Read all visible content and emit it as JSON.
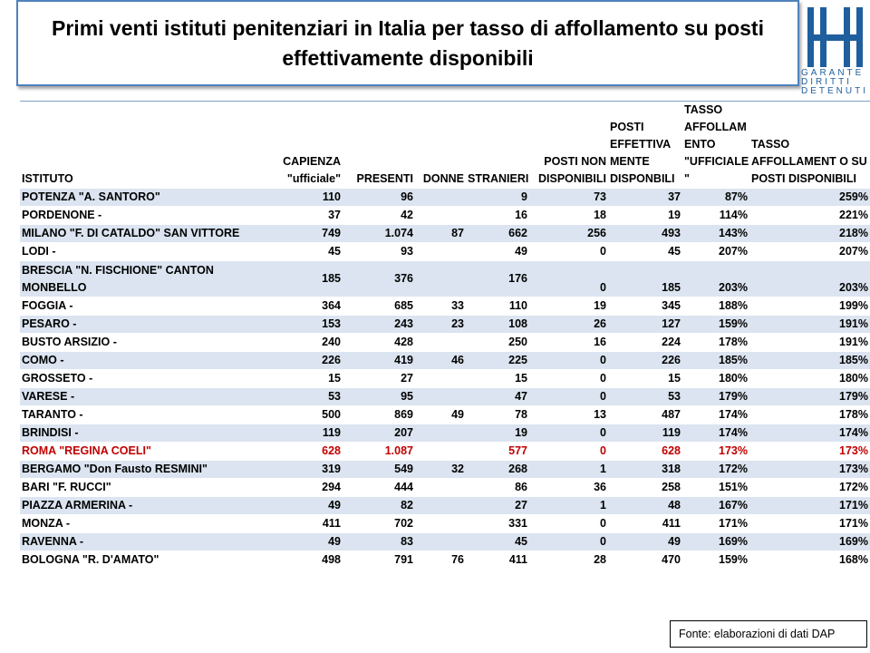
{
  "title": "Primi venti istituti penitenziari in Italia per tasso di affollamento su posti effettivamente disponibili",
  "logo": {
    "lines": [
      "GARANTE",
      "DIRITTI",
      "DETENUTI"
    ]
  },
  "columns": {
    "istituto": "ISTITUTO",
    "capienza": "CAPIENZA \"ufficiale\"",
    "presenti": "PRESENTI",
    "donne": "DONNE",
    "stranieri": "STRANIERI",
    "posti_non_disp": "POSTI NON DISPONIBILI",
    "posti_eff_disp": "POSTI EFFETTIVA MENTE DISPONBILI",
    "tasso_ufficiale": "TASSO AFFOLLAM ENTO \"UFFICIALE \"",
    "tasso_disp": "TASSO AFFOLLAMENT O SU POSTI DISPONIBILI"
  },
  "rows": [
    {
      "istituto": "POTENZA \"A. SANTORO\"",
      "capienza": "110",
      "presenti": "96",
      "donne": "",
      "stranieri": "9",
      "posti_non_disp": "73",
      "posti_eff_disp": "37",
      "tasso_ufficiale": "87%",
      "tasso_disp": "259%"
    },
    {
      "istituto": "PORDENONE -",
      "capienza": "37",
      "presenti": "42",
      "donne": "",
      "stranieri": "16",
      "posti_non_disp": "18",
      "posti_eff_disp": "19",
      "tasso_ufficiale": "114%",
      "tasso_disp": "221%"
    },
    {
      "istituto": "MILANO \"F. DI CATALDO\" SAN VITTORE",
      "capienza": "749",
      "presenti": "1.074",
      "donne": "87",
      "stranieri": "662",
      "posti_non_disp": "256",
      "posti_eff_disp": "493",
      "tasso_ufficiale": "143%",
      "tasso_disp": "218%"
    },
    {
      "istituto": "LODI -",
      "capienza": "45",
      "presenti": "93",
      "donne": "",
      "stranieri": "49",
      "posti_non_disp": "0",
      "posti_eff_disp": "45",
      "tasso_ufficiale": "207%",
      "tasso_disp": "207%"
    },
    {
      "istituto": "BRESCIA \"N. FISCHIONE\" CANTON MONBELLO",
      "capienza": "185",
      "presenti": "376",
      "donne": "",
      "stranieri": "176",
      "posti_non_disp": "0",
      "posti_eff_disp": "185",
      "tasso_ufficiale": "203%",
      "tasso_disp": "203%"
    },
    {
      "istituto": "FOGGIA -",
      "capienza": "364",
      "presenti": "685",
      "donne": "33",
      "stranieri": "110",
      "posti_non_disp": "19",
      "posti_eff_disp": "345",
      "tasso_ufficiale": "188%",
      "tasso_disp": "199%"
    },
    {
      "istituto": "PESARO -",
      "capienza": "153",
      "presenti": "243",
      "donne": "23",
      "stranieri": "108",
      "posti_non_disp": "26",
      "posti_eff_disp": "127",
      "tasso_ufficiale": "159%",
      "tasso_disp": "191%"
    },
    {
      "istituto": "BUSTO ARSIZIO -",
      "capienza": "240",
      "presenti": "428",
      "donne": "",
      "stranieri": "250",
      "posti_non_disp": "16",
      "posti_eff_disp": "224",
      "tasso_ufficiale": "178%",
      "tasso_disp": "191%"
    },
    {
      "istituto": "COMO -",
      "capienza": "226",
      "presenti": "419",
      "donne": "46",
      "stranieri": "225",
      "posti_non_disp": "0",
      "posti_eff_disp": "226",
      "tasso_ufficiale": "185%",
      "tasso_disp": "185%"
    },
    {
      "istituto": "GROSSETO -",
      "capienza": "15",
      "presenti": "27",
      "donne": "",
      "stranieri": "15",
      "posti_non_disp": "0",
      "posti_eff_disp": "15",
      "tasso_ufficiale": "180%",
      "tasso_disp": "180%"
    },
    {
      "istituto": "VARESE -",
      "capienza": "53",
      "presenti": "95",
      "donne": "",
      "stranieri": "47",
      "posti_non_disp": "0",
      "posti_eff_disp": "53",
      "tasso_ufficiale": "179%",
      "tasso_disp": "179%"
    },
    {
      "istituto": "TARANTO -",
      "capienza": "500",
      "presenti": "869",
      "donne": "49",
      "stranieri": "78",
      "posti_non_disp": "13",
      "posti_eff_disp": "487",
      "tasso_ufficiale": "174%",
      "tasso_disp": "178%"
    },
    {
      "istituto": "BRINDISI -",
      "capienza": "119",
      "presenti": "207",
      "donne": "",
      "stranieri": "19",
      "posti_non_disp": "0",
      "posti_eff_disp": "119",
      "tasso_ufficiale": "174%",
      "tasso_disp": "174%"
    },
    {
      "istituto": "ROMA \"REGINA COELI\"",
      "capienza": "628",
      "presenti": "1.087",
      "donne": "",
      "stranieri": "577",
      "posti_non_disp": "0",
      "posti_eff_disp": "628",
      "tasso_ufficiale": "173%",
      "tasso_disp": "173%"
    },
    {
      "istituto": "BERGAMO \"Don Fausto RESMINI\"",
      "capienza": "319",
      "presenti": "549",
      "donne": "32",
      "stranieri": "268",
      "posti_non_disp": "1",
      "posti_eff_disp": "318",
      "tasso_ufficiale": "172%",
      "tasso_disp": "173%"
    },
    {
      "istituto": "BARI \"F. RUCCI\"",
      "capienza": "294",
      "presenti": "444",
      "donne": "",
      "stranieri": "86",
      "posti_non_disp": "36",
      "posti_eff_disp": "258",
      "tasso_ufficiale": "151%",
      "tasso_disp": "172%"
    },
    {
      "istituto": "PIAZZA ARMERINA -",
      "capienza": "49",
      "presenti": "82",
      "donne": "",
      "stranieri": "27",
      "posti_non_disp": "1",
      "posti_eff_disp": "48",
      "tasso_ufficiale": "167%",
      "tasso_disp": "171%"
    },
    {
      "istituto": "MONZA -",
      "capienza": "411",
      "presenti": "702",
      "donne": "",
      "stranieri": "331",
      "posti_non_disp": "0",
      "posti_eff_disp": "411",
      "tasso_ufficiale": "171%",
      "tasso_disp": "171%"
    },
    {
      "istituto": "RAVENNA -",
      "capienza": "49",
      "presenti": "83",
      "donne": "",
      "stranieri": "45",
      "posti_non_disp": "0",
      "posti_eff_disp": "49",
      "tasso_ufficiale": "169%",
      "tasso_disp": "169%"
    },
    {
      "istituto": "BOLOGNA \"R. D'AMATO\"",
      "capienza": "498",
      "presenti": "791",
      "donne": "76",
      "stranieri": "411",
      "posti_non_disp": "28",
      "posti_eff_disp": "470",
      "tasso_ufficiale": "159%",
      "tasso_disp": "168%"
    }
  ],
  "highlight_row_index": 13,
  "highlight_color": "#c00000",
  "stripe_color": "#dbe4f0",
  "source": "Fonte: elaborazioni di dati DAP"
}
